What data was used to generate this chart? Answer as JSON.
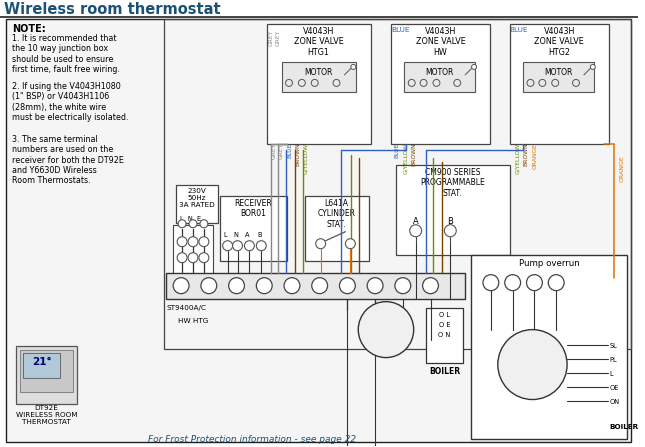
{
  "title": "Wireless room thermostat",
  "title_color": "#1a5276",
  "title_fontsize": 10.5,
  "bg_color": "#ffffff",
  "note_text": "NOTE:",
  "note1": "1. It is recommended that\nthe 10 way junction box\nshould be used to ensure\nfirst time, fault free wiring.",
  "note2": "2. If using the V4043H1080\n(1\" BSP) or V4043H1106\n(28mm), the white wire\nmust be electrically isolated.",
  "note3": "3. The same terminal\nnumbers are used on the\nreceiver for both the DT92E\nand Y6630D Wireless\nRoom Thermostats.",
  "zv1_label": "V4043H\nZONE VALVE\nHTG1",
  "zv2_label": "V4043H\nZONE VALVE\nHW",
  "zv3_label": "V4043H\nZONE VALVE\nHTG2",
  "pump_overrun_label": "Pump overrun",
  "frost_text": "For Frost Protection information - see page 22",
  "frost_color": "#1a5276",
  "dt92e_label": "DT92E\nWIRELESS ROOM\nTHERMOSTAT",
  "boiler_label": "BOILER",
  "receiver_label": "RECEIVER\nBOR01",
  "cylinder_stat_label": "L641A\nCYLINDER\nSTAT.",
  "cm900_label": "CM900 SERIES\nPROGRAMMABLE\nSTAT.",
  "st9400_label": "ST9400A/C",
  "supply_label": "230V\n50Hz\n3A RATED",
  "hwhtg_label": "HW HTG",
  "grey": "#888888",
  "blue": "#3060c0",
  "brown": "#7B3F00",
  "orange": "#E07000",
  "gyellow": "#6a8a00",
  "black": "#111111",
  "line_c": "#333333"
}
